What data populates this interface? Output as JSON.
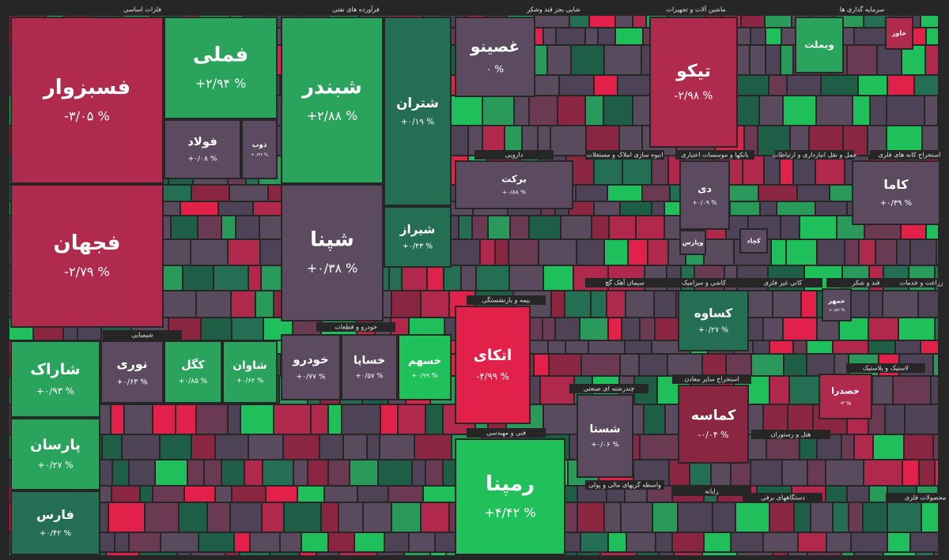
{
  "sectors": [
    "فلزات اساسی",
    "فرآورده های نفتی",
    "شایی بجز قند وشکر",
    "ماشین آلات و تجهیزات",
    "سرمایه گذاری ها",
    "شیمیایی",
    "خودرو و قطعات",
    "بیمه و بازنشستگی",
    "فنی و مهندسی",
    "دارویی",
    "انبوه سازی املاک و مستغلات",
    "بانکها و موسسات اعتباری",
    "حمل و نقل انبارداری و ارتباطات",
    "استخراج کانه های فلزی",
    "سیمان آهک گچ",
    "کاشی و سرامیک",
    "کانی غیر فلزی",
    "قند و شکر",
    "زراعت و خدمات",
    "چندرشته ای صنعتی",
    "استخراج سایر معادن",
    "هتل و رستوران",
    "رایانه",
    "واسطه گریهای مالی و پولی",
    "دستگاههای برقی",
    "محصولات فلزی",
    "لاستیک و پلاستیک"
  ],
  "tiles": [
    {
      "name": "فسبزوار",
      "change": "-۳/۰۵ %"
    },
    {
      "name": "فجهان",
      "change": "-۲/۷۹ %"
    },
    {
      "name": "فملی",
      "change": "+۲/۹۴ %"
    },
    {
      "name": "شبندر",
      "change": "+۲/۸۸ %"
    },
    {
      "name": "شتران",
      "change": "+۰/۱۹ %"
    },
    {
      "name": "شپنا",
      "change": "+۰/۳۸ %"
    },
    {
      "name": "غصینو",
      "change": "۰ %"
    },
    {
      "name": "تیکو",
      "change": "-۲/۹۸ %"
    },
    {
      "name": "اتکای",
      "change": "-۴/۹۹ %"
    },
    {
      "name": "رمپنا",
      "change": "+۴/۴۲ %"
    },
    {
      "name": "شاراک",
      "change": "+۰/۹۳ %"
    },
    {
      "name": "پارسان",
      "change": "+۰/۲۷ %"
    },
    {
      "name": "فارس",
      "change": "+۰/۴۲ %"
    },
    {
      "name": "کماسه",
      "change": "-۰/۰۴ %"
    },
    {
      "name": "کساوه",
      "change": "+۰/۲۷ %"
    },
    {
      "name": "شستا",
      "change": "+۰/۰۶ %"
    },
    {
      "name": "خساپا",
      "change": "+۰/۵۷ %"
    },
    {
      "name": "خودرو",
      "change": "+۰/۷۷ %"
    },
    {
      "name": "خسهم",
      "change": "+۰/۹۹ %"
    },
    {
      "name": "شیراز",
      "change": "+۰/۴۳ %"
    },
    {
      "name": "کگل",
      "change": "+۰/۸۵ %"
    },
    {
      "name": "شاوان",
      "change": "+۰/۶۲ %"
    },
    {
      "name": "نوری",
      "change": "+۰/۶۳ %"
    },
    {
      "name": "فولاد",
      "change": "+۰/۰۸ %"
    },
    {
      "name": "ذوب",
      "change": "+۰/۲۲ %"
    },
    {
      "name": "دی",
      "change": "+۰/۰۹ %"
    },
    {
      "name": "کاما",
      "change": "+۰/۳۹ %"
    },
    {
      "name": "خمهر",
      "change": "+۰/۵۲ %"
    },
    {
      "name": "برکت",
      "change": "+۰/۸۸ %"
    },
    {
      "name": "خصدرا",
      "change": "-۳ %"
    },
    {
      "name": "خاور",
      "change": null
    },
    {
      "name": "وبملت",
      "change": null
    },
    {
      "name": "کچاد",
      "change": null
    },
    {
      "name": "وپارس",
      "change": null
    }
  ]
}
